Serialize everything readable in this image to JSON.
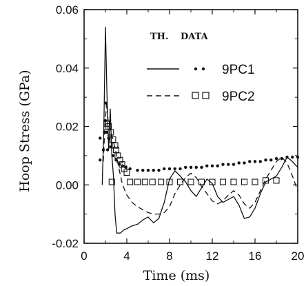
{
  "chart_data": {
    "type": "line",
    "title": "",
    "xlabel": "Time (ms)",
    "ylabel": "Hoop Stress (GPa)",
    "xlim": [
      0,
      20
    ],
    "ylim": [
      -0.02,
      0.06
    ],
    "xticks": [
      0,
      4,
      8,
      12,
      16,
      20
    ],
    "xtick_labels": [
      "0",
      "4",
      "8",
      "12",
      "16",
      "20"
    ],
    "yticks": [
      -0.02,
      0.0,
      0.02,
      0.04,
      0.06
    ],
    "ytick_labels": [
      "-0.02",
      "0.00",
      "0.02",
      "0.04",
      "0.06"
    ],
    "grid": false,
    "legend": {
      "placement": "top-right",
      "col_th": "TH.",
      "col_data": "DATA"
    },
    "series": [
      {
        "name": "9PC1",
        "kind": "theory",
        "style": "solid",
        "x": [
          1.7,
          1.85,
          2.0,
          2.15,
          2.3,
          2.45,
          2.6,
          2.75,
          2.9,
          3.05,
          3.2,
          3.4,
          3.7,
          4.0,
          4.5,
          5.0,
          5.5,
          6.0,
          6.5,
          7.0,
          7.5,
          8.0,
          8.5,
          9.0,
          9.5,
          10.0,
          10.5,
          11.0,
          11.5,
          12.0,
          12.5,
          13.0,
          13.5,
          14.0,
          14.5,
          15.0,
          15.5,
          16.0,
          16.5,
          17.0,
          17.5,
          18.0,
          18.5,
          19.0,
          19.5,
          20.0
        ],
        "y": [
          0.0,
          0.02,
          0.054,
          0.03,
          0.012,
          0.026,
          0.01,
          0.003,
          -0.01,
          -0.0165,
          -0.0165,
          -0.0165,
          -0.0155,
          -0.015,
          -0.014,
          -0.0135,
          -0.012,
          -0.011,
          -0.013,
          -0.0115,
          -0.006,
          0.002,
          0.0048,
          0.003,
          0.001,
          -0.002,
          -0.004,
          -0.001,
          0.002,
          0.0005,
          -0.004,
          -0.006,
          -0.005,
          -0.004,
          -0.007,
          -0.0115,
          -0.011,
          -0.008,
          -0.003,
          0.001,
          0.002,
          0.003,
          0.006,
          0.0095,
          0.008,
          0.006
        ]
      },
      {
        "name": "9PC1",
        "kind": "data",
        "marker": "dot",
        "x": [
          1.5,
          1.5,
          1.8,
          1.9,
          2.0,
          2.05,
          2.1,
          2.2,
          2.3,
          2.5,
          2.7,
          3.0,
          3.3,
          3.6,
          3.9,
          4.3,
          5.0,
          5.5,
          6.0,
          6.5,
          7.0,
          7.5,
          8.0,
          8.5,
          9.0,
          9.5,
          10.0,
          10.5,
          11.0,
          11.5,
          12.0,
          12.5,
          13.0,
          13.5,
          14.0,
          14.5,
          15.0,
          15.5,
          16.0,
          16.5,
          17.0,
          17.5,
          18.0,
          18.5,
          19.0,
          19.5,
          20.0
        ],
        "y": [
          0.016,
          0.0085,
          0.012,
          0.018,
          0.022,
          0.028,
          0.018,
          0.012,
          0.016,
          0.013,
          0.01,
          0.0085,
          0.007,
          0.0065,
          0.006,
          0.0055,
          0.005,
          0.005,
          0.005,
          0.005,
          0.005,
          0.0055,
          0.0055,
          0.0055,
          0.0055,
          0.006,
          0.006,
          0.006,
          0.006,
          0.0065,
          0.0065,
          0.0065,
          0.007,
          0.007,
          0.007,
          0.0075,
          0.0075,
          0.008,
          0.008,
          0.008,
          0.0085,
          0.0085,
          0.009,
          0.009,
          0.0095,
          0.0095,
          0.0095
        ]
      },
      {
        "name": "9PC2",
        "kind": "theory",
        "style": "dashed",
        "x": [
          1.8,
          1.95,
          2.1,
          2.25,
          2.4,
          2.6,
          2.8,
          3.0,
          3.3,
          3.6,
          4.0,
          4.5,
          5.0,
          5.5,
          6.0,
          6.5,
          7.0,
          7.5,
          8.0,
          8.5,
          9.0,
          9.5,
          10.0,
          10.5,
          11.0,
          11.5,
          12.0,
          12.5,
          13.0,
          13.5,
          14.0,
          14.5,
          15.0,
          15.5,
          16.0,
          16.5,
          17.0,
          17.5,
          18.0,
          18.5,
          19.0,
          19.5,
          20.0
        ],
        "y": [
          0.008,
          0.02,
          0.028,
          0.022,
          0.02,
          0.017,
          0.014,
          0.011,
          0.005,
          0.0,
          -0.0035,
          -0.006,
          -0.0075,
          -0.0085,
          -0.0095,
          -0.01,
          -0.01,
          -0.0095,
          -0.0075,
          -0.003,
          0.0,
          0.0025,
          0.004,
          0.0025,
          -0.0005,
          -0.003,
          -0.0055,
          -0.0065,
          -0.0055,
          -0.0035,
          -0.002,
          -0.0035,
          -0.0065,
          -0.008,
          -0.006,
          -0.002,
          0.002,
          0.005,
          0.008,
          0.0095,
          0.0075,
          0.003,
          -0.002
        ]
      },
      {
        "name": "9PC2",
        "kind": "data",
        "marker": "square",
        "x": [
          2.1,
          2.3,
          2.5,
          2.7,
          2.9,
          3.0,
          3.15,
          3.35,
          3.55,
          3.75,
          4.0,
          4.3,
          2.6,
          5.0,
          5.7,
          6.4,
          7.2,
          8.0,
          9.0,
          10.0,
          11.0,
          12.0,
          13.0,
          14.0,
          15.0,
          16.0,
          17.0,
          18.0
        ],
        "y": [
          0.021,
          0.02,
          0.018,
          0.0155,
          0.0135,
          0.012,
          0.01,
          0.0085,
          0.007,
          0.0055,
          0.0042,
          0.001,
          0.001,
          0.001,
          0.001,
          0.001,
          0.001,
          0.001,
          0.001,
          0.001,
          0.001,
          0.001,
          0.001,
          0.001,
          0.001,
          0.001,
          0.0015,
          0.0015
        ]
      }
    ]
  }
}
